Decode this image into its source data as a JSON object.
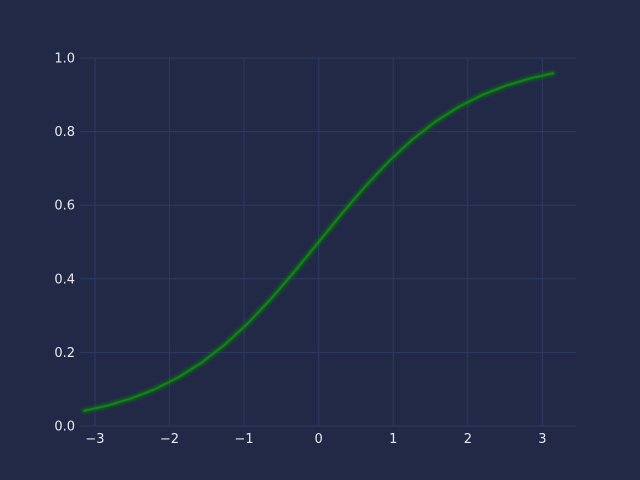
{
  "chart_data": {
    "type": "line",
    "title": "",
    "xlabel": "",
    "ylabel": "",
    "xlim": [
      -3.2,
      3.45
    ],
    "ylim": [
      0.0,
      1.0
    ],
    "grid": true,
    "background_color": "#212946",
    "grid_color": "#2d3a63",
    "tick_label_color": "#e8e8ee",
    "x_ticks": [
      {
        "value": -3,
        "label": "−3"
      },
      {
        "value": -2,
        "label": "−2"
      },
      {
        "value": -1,
        "label": "−1"
      },
      {
        "value": 0,
        "label": "0"
      },
      {
        "value": 1,
        "label": "1"
      },
      {
        "value": 2,
        "label": "2"
      },
      {
        "value": 3,
        "label": "3"
      }
    ],
    "y_ticks": [
      {
        "value": 0.0,
        "label": "0.0"
      },
      {
        "value": 0.2,
        "label": "0.2"
      },
      {
        "value": 0.4,
        "label": "0.4"
      },
      {
        "value": 0.6,
        "label": "0.6"
      },
      {
        "value": 0.8,
        "label": "0.8"
      },
      {
        "value": 1.0,
        "label": "1.0"
      }
    ],
    "series": [
      {
        "color": "#0a8a0a",
        "glow_color": "#0a8a0a",
        "x": [
          -3.1416,
          -2.8274,
          -2.5133,
          -2.1991,
          -1.885,
          -1.5708,
          -1.2566,
          -0.9425,
          -0.6283,
          -0.3142,
          0.0,
          0.3142,
          0.6283,
          0.9425,
          1.2566,
          1.5708,
          1.885,
          2.1991,
          2.5133,
          2.8274,
          3.1416
        ],
        "y": [
          0.0414,
          0.0558,
          0.075,
          0.0998,
          0.1318,
          0.172,
          0.2215,
          0.2804,
          0.3479,
          0.4221,
          0.5,
          0.5779,
          0.6521,
          0.7196,
          0.7785,
          0.828,
          0.8682,
          0.9002,
          0.925,
          0.9442,
          0.9586
        ]
      }
    ]
  }
}
